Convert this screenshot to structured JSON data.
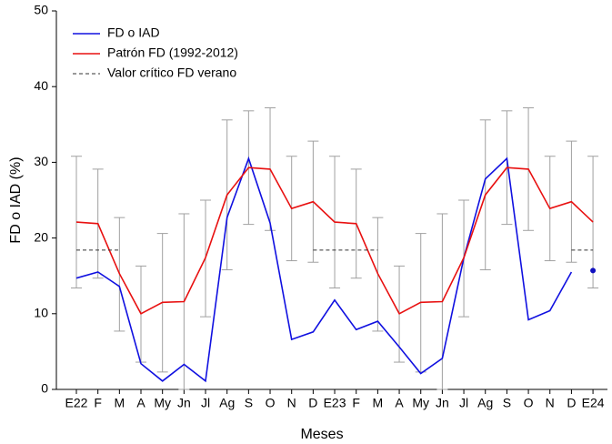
{
  "chart_data": {
    "type": "line",
    "xlabel": "Meses",
    "ylabel": "FD o IAD (%)",
    "categories": [
      "E22",
      "F",
      "M",
      "A",
      "My",
      "Jn",
      "Jl",
      "Ag",
      "S",
      "O",
      "N",
      "D",
      "E23",
      "F",
      "M",
      "A",
      "My",
      "Jn",
      "Jl",
      "Ag",
      "S",
      "O",
      "N",
      "D",
      "E24"
    ],
    "ylim": [
      0,
      50
    ],
    "yticks": [
      0,
      10,
      20,
      30,
      40,
      50
    ],
    "grid": false,
    "legend": "upper left",
    "series": [
      {
        "name": "FD o IAD",
        "color": "#1010e0",
        "style": "solid",
        "values": [
          14.7,
          15.5,
          13.6,
          3.4,
          1.1,
          3.3,
          1.1,
          22.7,
          30.5,
          22.0,
          6.6,
          7.6,
          11.8,
          7.9,
          9.0,
          5.6,
          2.1,
          4.1,
          17.4,
          27.8,
          30.5,
          9.2,
          10.4,
          15.5,
          null
        ]
      },
      {
        "name": "Patrón FD (1992-2012)",
        "color": "#e81010",
        "style": "solid",
        "values": [
          22.1,
          21.9,
          15.3,
          10.0,
          11.5,
          11.6,
          17.4,
          25.7,
          29.3,
          29.1,
          23.9,
          24.8,
          22.1,
          21.9,
          15.3,
          10.0,
          11.5,
          11.6,
          17.4,
          25.7,
          29.3,
          29.1,
          23.9,
          24.8,
          22.1
        ]
      },
      {
        "name": "Valor crítico FD verano",
        "color": "#333333",
        "style": "dashed",
        "values": [
          18.4,
          18.4,
          18.4,
          null,
          null,
          null,
          null,
          null,
          null,
          null,
          null,
          18.4,
          18.4,
          18.4,
          18.4,
          null,
          null,
          null,
          null,
          null,
          null,
          null,
          null,
          18.4,
          18.4
        ]
      },
      {
        "color": "#1010c0",
        "style": "point",
        "values": [
          null,
          null,
          null,
          null,
          null,
          null,
          null,
          null,
          null,
          null,
          null,
          null,
          null,
          null,
          null,
          null,
          null,
          null,
          null,
          null,
          null,
          null,
          null,
          null,
          15.7
        ]
      }
    ],
    "error_bars": {
      "color": "#a0a0a0",
      "low": [
        13.4,
        14.7,
        7.7,
        3.6,
        2.3,
        0,
        9.6,
        15.8,
        21.8,
        21.0,
        17.0,
        16.8,
        13.4,
        14.7,
        7.7,
        3.6,
        2.3,
        0,
        9.6,
        15.8,
        21.8,
        21.0,
        17.0,
        16.8,
        13.4
      ],
      "high": [
        30.8,
        29.1,
        22.7,
        16.3,
        20.6,
        23.2,
        25.0,
        35.6,
        36.8,
        37.2,
        30.8,
        32.8,
        30.8,
        29.1,
        22.7,
        16.3,
        20.6,
        23.2,
        25.0,
        35.6,
        36.8,
        37.2,
        30.8,
        32.8,
        30.8
      ]
    }
  }
}
